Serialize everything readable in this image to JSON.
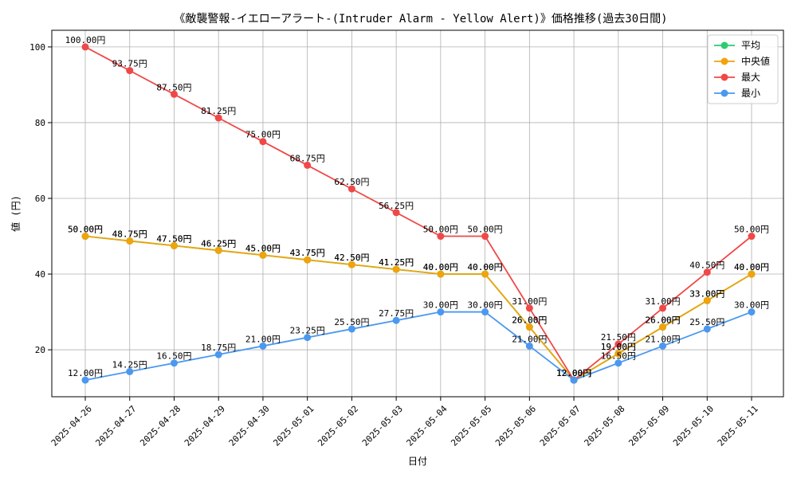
{
  "chart_data": {
    "type": "line",
    "title": "《敵襲警報-イエローアラート-(Intruder Alarm - Yellow Alert)》価格推移(過去30日間)",
    "xlabel": "日付",
    "ylabel": "値 (円)",
    "x": [
      "2025-04-26",
      "2025-04-27",
      "2025-04-28",
      "2025-04-29",
      "2025-04-30",
      "2025-05-01",
      "2025-05-02",
      "2025-05-03",
      "2025-05-04",
      "2025-05-05",
      "2025-05-06",
      "2025-05-07",
      "2025-05-08",
      "2025-05-09",
      "2025-05-10",
      "2025-05-11"
    ],
    "yticks": [
      20,
      40,
      60,
      80,
      100
    ],
    "ylim": [
      7.6,
      104.4
    ],
    "grid": true,
    "legend_position": "top-right",
    "data_label_suffix": "円",
    "series": [
      {
        "name": "平均",
        "color": "#2ecc71",
        "values": [
          50.0,
          48.75,
          47.5,
          46.25,
          45.0,
          43.75,
          42.5,
          41.25,
          40.0,
          40.0,
          26.0,
          12.0,
          19.0,
          26.0,
          33.0,
          40.0
        ]
      },
      {
        "name": "中央値",
        "color": "#f0a30a",
        "values": [
          50.0,
          48.75,
          47.5,
          46.25,
          45.0,
          43.75,
          42.5,
          41.25,
          40.0,
          40.0,
          26.0,
          12.0,
          19.0,
          26.0,
          33.0,
          40.0
        ]
      },
      {
        "name": "最大",
        "color": "#f04848",
        "values": [
          100.0,
          93.75,
          87.5,
          81.25,
          75.0,
          68.75,
          62.5,
          56.25,
          50.0,
          50.0,
          31.0,
          12.0,
          21.5,
          31.0,
          40.5,
          50.0
        ]
      },
      {
        "name": "最小",
        "color": "#4a98f0",
        "values": [
          12.0,
          14.25,
          16.5,
          18.75,
          21.0,
          23.25,
          25.5,
          27.75,
          30.0,
          30.0,
          21.0,
          12.0,
          16.5,
          21.0,
          25.5,
          30.0
        ]
      }
    ]
  }
}
